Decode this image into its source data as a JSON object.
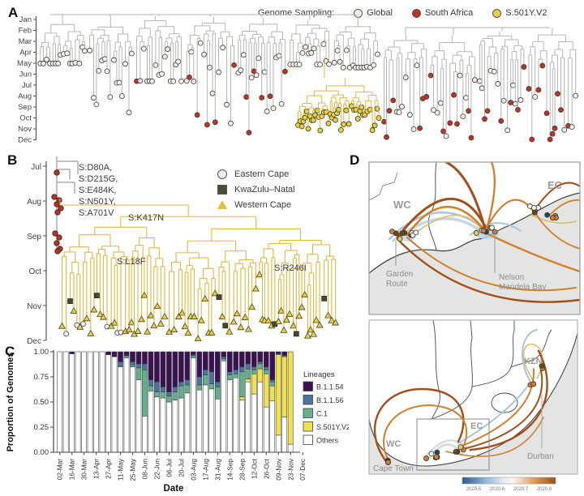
{
  "panel_a": {
    "label": "A",
    "axis_months": [
      "Jan",
      "Feb",
      "Mar",
      "Apr",
      "May",
      "Jun",
      "Jul",
      "Aug",
      "Sep",
      "Oct",
      "Nov",
      "Dec"
    ],
    "legend": {
      "title": "Genome Sampling:",
      "items": [
        {
          "label": "Global",
          "color": "#f2f1ee"
        },
        {
          "label": "South Africa",
          "color": "#b5372a"
        },
        {
          "label": "S.501Y.V2",
          "color": "#e6cf4d"
        }
      ]
    },
    "colors": {
      "branch": "#b6b6b4",
      "clade_branch": "#e2b742",
      "tip_global": "#f2f1ee",
      "tip_sa": "#b5372a",
      "tip_v2": "#e6cf4d"
    }
  },
  "panel_b": {
    "label": "B",
    "axis_months": [
      "Jul",
      "Aug",
      "Sep",
      "Oct",
      "Nov",
      "Dec"
    ],
    "clade_mutations": [
      "S:D80A,",
      "S:D215G,",
      "S:E484K,",
      "S:N501Y,",
      "S:A701V"
    ],
    "branch_mutations": [
      {
        "label": "S:K417N"
      },
      {
        "label": "S:L18F"
      },
      {
        "label": "S:R246I"
      }
    ],
    "legend": [
      {
        "label": "Eastern Cape",
        "shape": "circle"
      },
      {
        "label": "KwaZulu–Natal",
        "shape": "square"
      },
      {
        "label": "Western Cape",
        "shape": "triangle"
      }
    ]
  },
  "panel_c_label": "C",
  "chart_data": {
    "type": "bar",
    "stacked": true,
    "panel": "C",
    "xlabel": "Date",
    "ylabel": "Proportion of Genomes",
    "ylim": [
      0,
      1
    ],
    "ytick_labels": [
      "0.00",
      "0.25",
      "0.50",
      "0.75",
      "1.00"
    ],
    "legend_title": "Lineages",
    "legend_position": "right",
    "bar_interval": "weekly",
    "categories": [
      "02-Mar",
      "09-Mar",
      "16-Mar",
      "23-Mar",
      "30-Mar",
      "06-Apr",
      "13-Apr",
      "20-Apr",
      "27-Apr",
      "04-May",
      "11-May",
      "18-May",
      "25-May",
      "01-Jun",
      "08-Jun",
      "15-Jun",
      "22-Jun",
      "29-Jun",
      "06-Jul",
      "13-Jul",
      "20-Jul",
      "27-Jul",
      "03-Aug",
      "10-Aug",
      "17-Aug",
      "24-Aug",
      "31-Aug",
      "07-Sep",
      "14-Sep",
      "21-Sep",
      "28-Sep",
      "05-Oct",
      "12-Oct",
      "19-Oct",
      "26-Oct",
      "02-Nov",
      "09-Nov",
      "16-Nov",
      "23-Nov"
    ],
    "xtick_step": 2,
    "xtick_labels": [
      "02-Mar",
      "16-Mar",
      "30-Mar",
      "13-Apr",
      "27-Apr",
      "11-May",
      "25-May",
      "08-Jun",
      "22-Jun",
      "06-Jul",
      "20-Jul",
      "03-Aug",
      "17-Aug",
      "31-Aug",
      "14-Sep",
      "28-Sep",
      "12-Oct",
      "26-Oct",
      "09-Nov",
      "23-Nov",
      "07-Dec"
    ],
    "stack_order_bottom_to_top": [
      "Others",
      "S.501Y.V2",
      "C.1",
      "B.1.1.56",
      "B.1.1.54"
    ],
    "series": [
      {
        "name": "B.1.1.54",
        "color": "#3a1253",
        "values": [
          0,
          0,
          0.02,
          0,
          0,
          0,
          0,
          0,
          0.03,
          0.05,
          0.1,
          0.04,
          0.1,
          0.12,
          0.12,
          0.28,
          0.3,
          0.35,
          0.4,
          0.35,
          0.3,
          0.28,
          0.03,
          0.25,
          0.18,
          0.2,
          0.3,
          0.05,
          0.2,
          0.18,
          0.15,
          0.12,
          0.15,
          0.1,
          0.15,
          0.28,
          0.02,
          0.04,
          0
        ]
      },
      {
        "name": "B.1.1.56",
        "color": "#4b739e",
        "values": [
          0,
          0,
          0,
          0,
          0,
          0,
          0,
          0,
          0,
          0,
          0.05,
          0,
          0.03,
          0.04,
          0.06,
          0.06,
          0.1,
          0.05,
          0.04,
          0.05,
          0.04,
          0.05,
          0.01,
          0.08,
          0.05,
          0.12,
          0.05,
          0.02,
          0.03,
          0.04,
          0.05,
          0.05,
          0.03,
          0.02,
          0.03,
          0.02,
          0,
          0,
          0
        ]
      },
      {
        "name": "C.1",
        "color": "#63b08c",
        "values": [
          0,
          0,
          0,
          0,
          0,
          0,
          0,
          0,
          0,
          0,
          0,
          0.02,
          0.02,
          0.12,
          0.46,
          0.05,
          0.05,
          0.06,
          0.06,
          0.08,
          0.12,
          0.08,
          0.02,
          0.05,
          0.1,
          0.05,
          0.12,
          0.02,
          0.05,
          0.04,
          0.25,
          0.1,
          0.04,
          0.05,
          0.04,
          0.04,
          0.01,
          0.01,
          0
        ]
      },
      {
        "name": "S.501Y.V2",
        "color": "#f1e14e",
        "values": [
          0,
          0,
          0,
          0,
          0,
          0,
          0,
          0,
          0,
          0,
          0,
          0,
          0,
          0,
          0,
          0,
          0,
          0,
          0,
          0,
          0,
          0,
          0,
          0,
          0,
          0,
          0,
          0,
          0,
          0,
          0.03,
          0.03,
          0.2,
          0.13,
          0.33,
          0.15,
          0.8,
          0.6,
          0.92
        ]
      },
      {
        "name": "Others",
        "color": "#ffffff",
        "values": [
          1,
          1,
          0.98,
          1,
          1,
          1,
          1,
          1,
          0.97,
          0.95,
          0.85,
          0.94,
          0.85,
          0.72,
          0.36,
          0.61,
          0.55,
          0.54,
          0.5,
          0.52,
          0.54,
          0.59,
          0.94,
          0.62,
          0.67,
          0.63,
          0.53,
          0.91,
          0.72,
          0.74,
          0.52,
          0.7,
          0.58,
          0.7,
          0.45,
          0.51,
          0.17,
          0.35,
          0.08
        ]
      }
    ]
  },
  "panel_d": {
    "label": "D",
    "top_map": {
      "region_labels": [
        {
          "text": "WC"
        },
        {
          "text": "EC"
        }
      ],
      "annotations": [
        {
          "line1": "Garden",
          "line2": "Route"
        },
        {
          "line1": "Nelson",
          "line2": "Mandela Bay"
        }
      ]
    },
    "bottom_map": {
      "region_labels": [
        {
          "text": "WC"
        },
        {
          "text": "EC"
        },
        {
          "text": "KZN"
        }
      ],
      "city_labels": [
        {
          "text": "Cape Town"
        },
        {
          "text": "Durban"
        }
      ],
      "colorbar": {
        "tick_labels": [
          "2020.5",
          "2020.6",
          "2020.7",
          "2020.8"
        ]
      }
    }
  }
}
